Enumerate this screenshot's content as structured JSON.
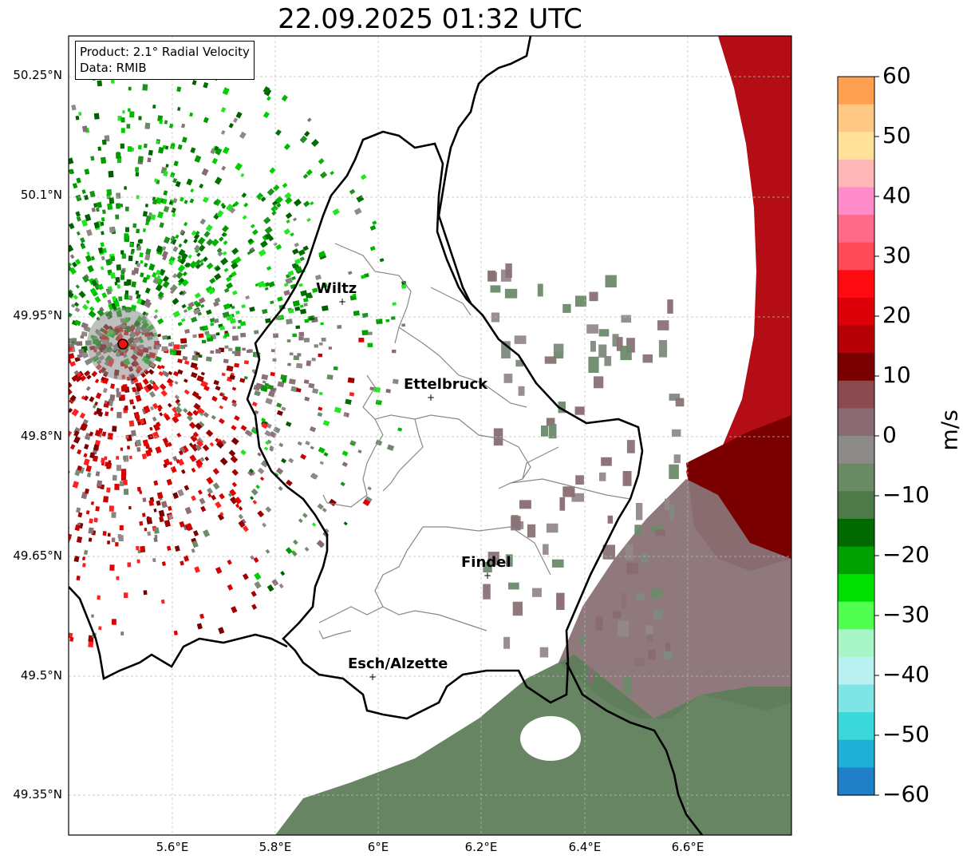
{
  "title": "22.09.2025 01:32 UTC",
  "info": {
    "product": "Product: 2.1° Radial Velocity",
    "data": "Data: RMIB"
  },
  "cities": [
    {
      "name": "Wiltz"
    },
    {
      "name": "Ettelbruck"
    },
    {
      "name": "Findel"
    },
    {
      "name": "Esch/Alzette"
    }
  ],
  "lat_ticks": [
    "50.25°N",
    "50.1°N",
    "49.95°N",
    "49.8°N",
    "49.65°N",
    "49.5°N",
    "49.35°N"
  ],
  "lon_ticks": [
    "5.6°E",
    "5.8°E",
    "6°E",
    "6.2°E",
    "6.4°E",
    "6.6°E"
  ],
  "colorbar": {
    "unit": "m/s",
    "ticks": [
      "60",
      "50",
      "40",
      "30",
      "20",
      "10",
      "0",
      "−10",
      "−20",
      "−30",
      "−40",
      "−50",
      "−60"
    ],
    "colors": [
      "#ff9f50",
      "#ffc885",
      "#ffe19a",
      "#ffb6b6",
      "#ff8cc8",
      "#ff6a8a",
      "#ff4a5a",
      "#ff0a10",
      "#dd0008",
      "#b50005",
      "#7a0000",
      "#8a4a50",
      "#8a6a72",
      "#8d8a8a",
      "#6a8a66",
      "#4e7a4a",
      "#006a00",
      "#00a000",
      "#00e000",
      "#50ff50",
      "#a8f5c8",
      "#b9f0f0",
      "#7fe4e4",
      "#3ad8d8",
      "#1fb0d8",
      "#1f80c8"
    ],
    "accent_site": "#ee1111"
  }
}
